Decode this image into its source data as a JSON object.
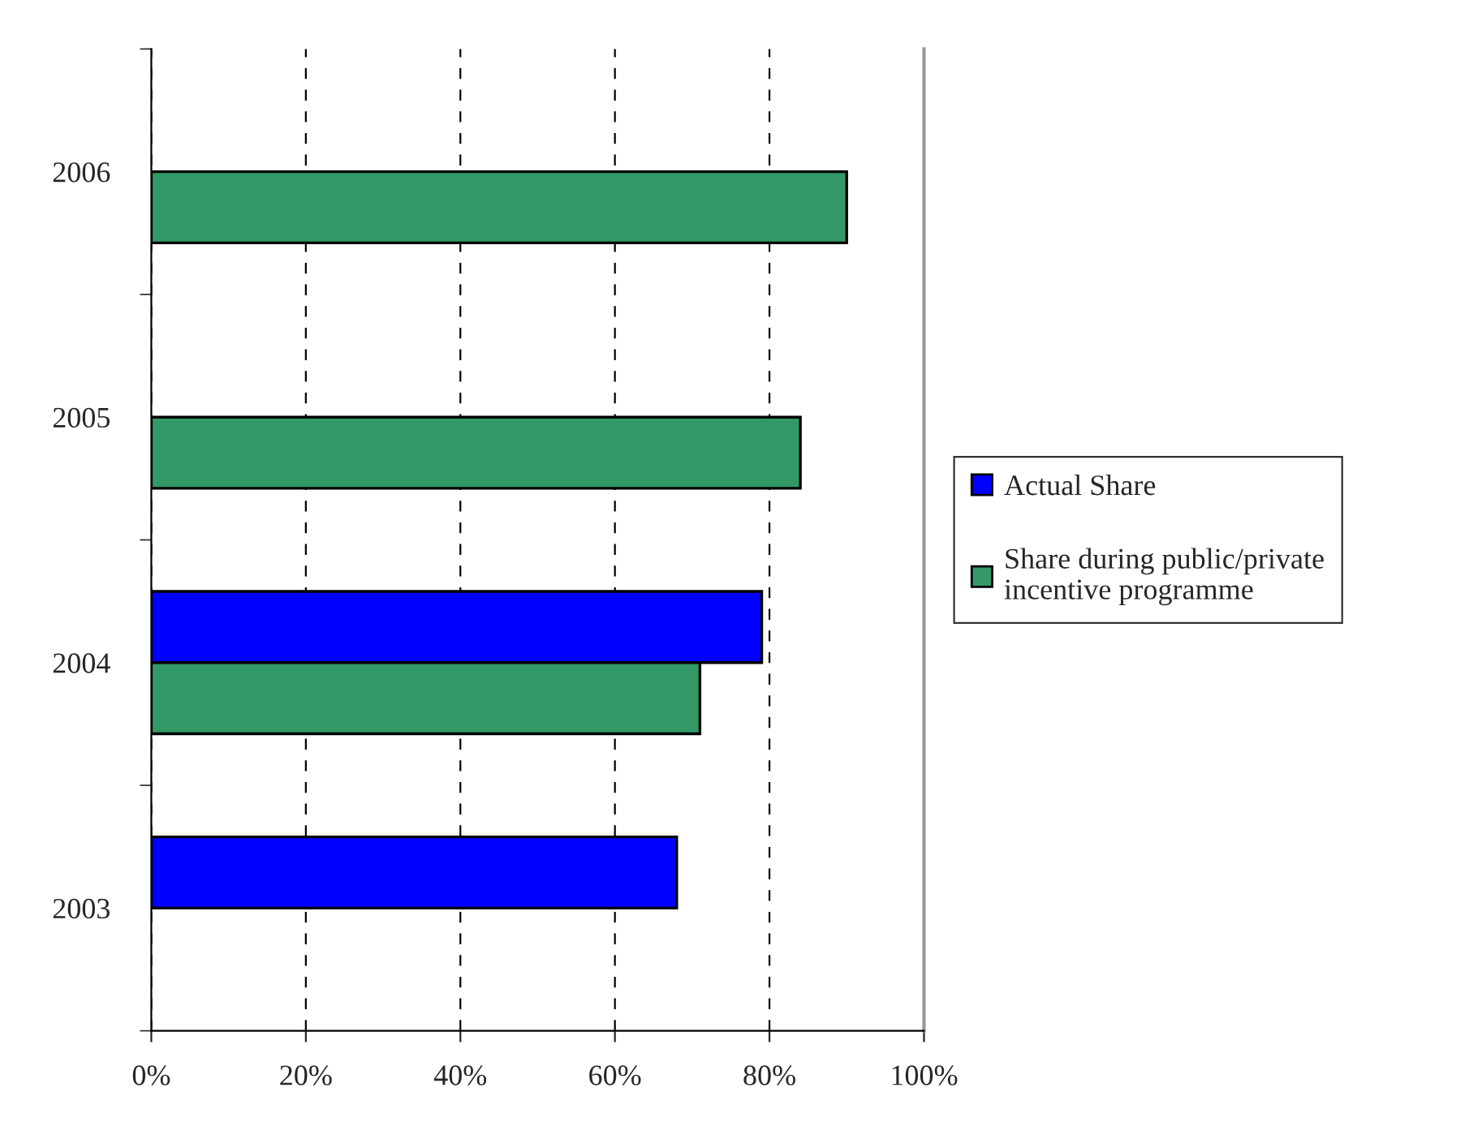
{
  "chart_data": {
    "type": "bar",
    "orientation": "horizontal",
    "categories": [
      "2006",
      "2005",
      "2004",
      "2003"
    ],
    "series": [
      {
        "name": "Actual Share",
        "color": "#0000ff",
        "values": [
          null,
          null,
          79,
          68
        ]
      },
      {
        "name": "Share during public/private\nincentive programme",
        "color": "#339966",
        "values": [
          90,
          84,
          71,
          null
        ]
      }
    ],
    "xlim": [
      0,
      100
    ],
    "xticks": [
      {
        "value": 0,
        "label": "0%"
      },
      {
        "value": 20,
        "label": "20%"
      },
      {
        "value": 40,
        "label": "40%"
      },
      {
        "value": 60,
        "label": "60%"
      },
      {
        "value": 80,
        "label": "80%"
      },
      {
        "value": 100,
        "label": "100%"
      }
    ],
    "grid": "x",
    "legend": "right"
  }
}
